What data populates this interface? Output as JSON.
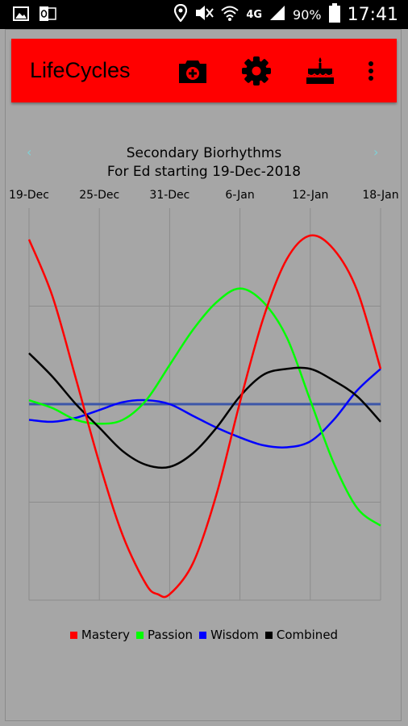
{
  "status": {
    "battery_percent": "90%",
    "time": "17:41",
    "network": "4G"
  },
  "app": {
    "title": "LifeCycles",
    "actions": [
      {
        "name": "camera-plus-icon"
      },
      {
        "name": "gear-icon"
      },
      {
        "name": "birthday-cake-icon"
      },
      {
        "name": "more-vertical-icon"
      }
    ]
  },
  "chart_data": {
    "type": "line",
    "title": "Secondary Biorhythms",
    "subtitle": "For Ed starting 19-Dec-2018",
    "x_tick_labels": [
      "19-Dec",
      "25-Dec",
      "31-Dec",
      "6-Jan",
      "12-Jan",
      "18-Jan"
    ],
    "x_tick_days": [
      0,
      6,
      12,
      18,
      24,
      30
    ],
    "xlim": [
      0,
      30
    ],
    "ylim": [
      -1,
      1
    ],
    "grid": true,
    "legend_position": "bottom",
    "series": [
      {
        "name": "Mastery",
        "color": "#ff0000",
        "x": [
          0,
          2,
          4,
          6,
          8,
          10,
          11,
          12,
          14,
          16,
          18,
          20,
          22,
          24,
          26,
          28,
          30
        ],
        "y": [
          0.84,
          0.55,
          0.13,
          -0.3,
          -0.67,
          -0.92,
          -0.97,
          -0.97,
          -0.81,
          -0.46,
          0.01,
          0.44,
          0.74,
          0.86,
          0.79,
          0.58,
          0.18
        ]
      },
      {
        "name": "Passion",
        "color": "#00ff00",
        "x": [
          0,
          2,
          4,
          6,
          8,
          10,
          12,
          14,
          16,
          18,
          20,
          22,
          24,
          26,
          28,
          30
        ],
        "y": [
          0.02,
          -0.02,
          -0.08,
          -0.1,
          -0.08,
          0.02,
          0.2,
          0.38,
          0.52,
          0.59,
          0.52,
          0.34,
          0.02,
          -0.3,
          -0.53,
          -0.62
        ]
      },
      {
        "name": "Wisdom",
        "color": "#0000ff",
        "x": [
          0,
          2,
          4,
          6,
          8,
          10,
          12,
          14,
          16,
          18,
          20,
          22,
          24,
          26,
          28,
          30
        ],
        "y": [
          -0.08,
          -0.09,
          -0.07,
          -0.03,
          0.01,
          0.02,
          0.0,
          -0.06,
          -0.12,
          -0.17,
          -0.21,
          -0.22,
          -0.19,
          -0.08,
          0.07,
          0.18
        ]
      },
      {
        "name": "Combined",
        "color": "#000000",
        "x": [
          0,
          2,
          4,
          6,
          8,
          10,
          12,
          14,
          16,
          18,
          20,
          22,
          24,
          26,
          28,
          30
        ],
        "y": [
          0.26,
          0.14,
          0.0,
          -0.12,
          -0.24,
          -0.31,
          -0.32,
          -0.25,
          -0.12,
          0.04,
          0.15,
          0.18,
          0.18,
          0.12,
          0.04,
          -0.09
        ]
      },
      {
        "name": "",
        "color": "#3c56a8",
        "x": [
          0,
          30
        ],
        "y": [
          0.0,
          0.0
        ]
      }
    ]
  }
}
